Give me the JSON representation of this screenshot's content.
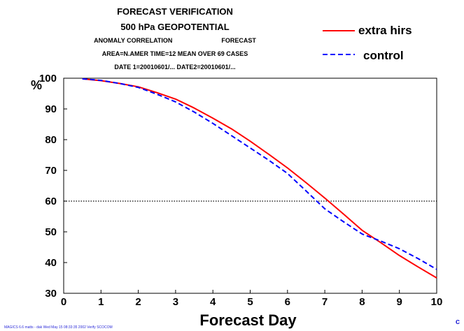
{
  "header": {
    "line1": "FORECAST VERIFICATION",
    "line2": "500 hPa GEOPOTENTIAL",
    "line3a": "ANOMALY CORRELATION",
    "line3b": "FORECAST",
    "line4": "AREA=N.AMER   TIME=12   MEAN OVER  69 CASES",
    "line5": "DATE 1=20010601/... DATE2=20010601/..."
  },
  "footer": {
    "text": "MAGICS 6.6 matts - dak Wed May 15 08:33:35 2002 Verify SCOCOM",
    "corner": "c"
  },
  "chart_data": {
    "type": "line",
    "xlabel": "Forecast Day",
    "ylabel": "%",
    "xlim": [
      0,
      10
    ],
    "ylim": [
      30,
      100
    ],
    "xticks": [
      "0",
      "1",
      "2",
      "3",
      "4",
      "5",
      "6",
      "7",
      "8",
      "9",
      "10"
    ],
    "yticks": [
      "30",
      "40",
      "50",
      "60",
      "70",
      "80",
      "90",
      "100"
    ],
    "reference_line": 60,
    "grid": false,
    "legend_position": "top-right",
    "series": [
      {
        "name": "extra hirs",
        "color": "#ff0000",
        "style": "solid",
        "x": [
          0.5,
          1,
          1.5,
          2,
          2.5,
          3,
          3.5,
          4,
          4.5,
          5,
          5.5,
          6,
          6.5,
          7,
          7.5,
          8,
          8.5,
          9,
          9.5,
          10
        ],
        "y": [
          99.8,
          99.2,
          98.3,
          97.2,
          95.3,
          93.2,
          90.3,
          87.0,
          83.5,
          79.5,
          75.2,
          70.8,
          66.0,
          61.0,
          55.8,
          50.5,
          46.5,
          42.3,
          38.6,
          35.0
        ]
      },
      {
        "name": "control",
        "color": "#0000ff",
        "style": "dashed",
        "x": [
          0.5,
          1,
          1.5,
          2,
          2.5,
          3,
          3.5,
          4,
          4.5,
          5,
          5.5,
          6,
          6.5,
          7,
          7.5,
          8,
          8.5,
          9,
          9.5,
          10
        ],
        "y": [
          99.8,
          99.3,
          98.3,
          97.0,
          94.8,
          92.3,
          89.0,
          85.3,
          81.3,
          77.3,
          73.3,
          69.0,
          63.3,
          57.5,
          53.3,
          49.3,
          47.0,
          44.5,
          41.3,
          37.8
        ]
      }
    ]
  }
}
